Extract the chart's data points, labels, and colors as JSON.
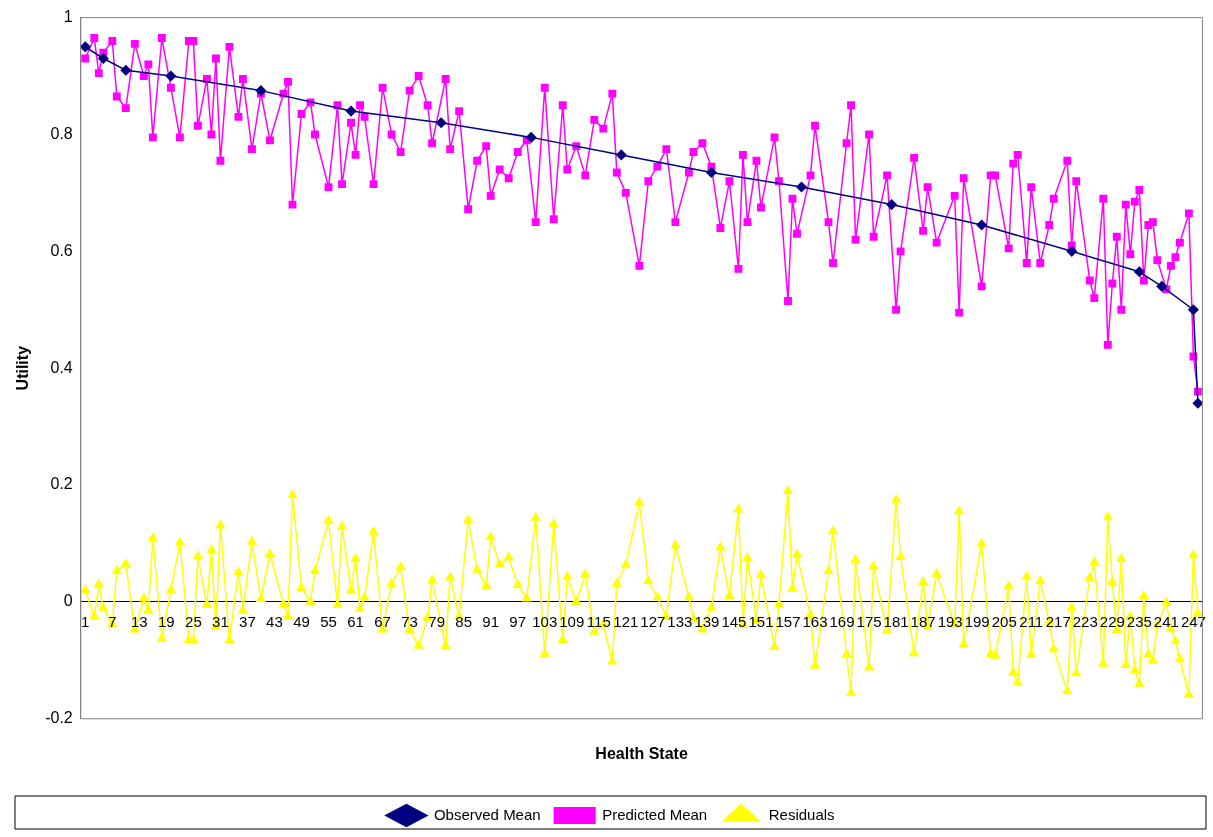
{
  "chart_data": {
    "type": "line",
    "xlabel": "Health State",
    "ylabel": "Utility",
    "legend": "bottom",
    "grid": false,
    "xlim": [
      0,
      249
    ],
    "xticks": [
      1,
      7,
      13,
      19,
      25,
      31,
      37,
      43,
      49,
      55,
      61,
      67,
      73,
      79,
      85,
      91,
      97,
      103,
      109,
      115,
      121,
      127,
      133,
      139,
      145,
      151,
      157,
      163,
      169,
      175,
      181,
      187,
      193,
      199,
      205,
      211,
      217,
      223,
      229,
      235,
      241,
      247
    ],
    "ylim": [
      -0.2,
      1
    ],
    "yticks": [
      -0.2,
      0,
      0.2,
      0.4,
      0.6,
      0.8,
      1
    ],
    "series": [
      {
        "name": "Observed Mean",
        "color": "#000080",
        "marker": "diamond",
        "x": [
          1,
          5,
          10,
          20,
          40,
          60,
          80,
          100,
          120,
          140,
          160,
          180,
          200,
          220,
          235,
          240,
          247,
          248
        ],
        "values": [
          0.95,
          0.93,
          0.91,
          0.9,
          0.875,
          0.84,
          0.82,
          0.795,
          0.765,
          0.735,
          0.71,
          0.68,
          0.645,
          0.6,
          0.565,
          0.54,
          0.5,
          0.34
        ]
      },
      {
        "name": "Predicted Mean",
        "color": "#ff00ff",
        "marker": "square",
        "x": [
          1,
          3,
          4,
          5,
          7,
          8,
          10,
          12,
          14,
          15,
          16,
          18,
          20,
          22,
          24,
          25,
          26,
          28,
          29,
          30,
          31,
          33,
          35,
          36,
          38,
          40,
          42,
          45,
          46,
          47,
          49,
          51,
          52,
          55,
          57,
          58,
          60,
          61,
          62,
          63,
          65,
          67,
          69,
          71,
          73,
          75,
          77,
          78,
          81,
          82,
          84,
          86,
          88,
          90,
          91,
          93,
          95,
          97,
          99,
          101,
          103,
          105,
          107,
          108,
          110,
          112,
          114,
          116,
          118,
          119,
          121,
          124,
          126,
          128,
          130,
          132,
          135,
          136,
          138,
          140,
          142,
          144,
          146,
          147,
          148,
          150,
          151,
          154,
          155,
          157,
          158,
          159,
          162,
          163,
          166,
          167,
          170,
          171,
          172,
          175,
          176,
          179,
          181,
          182,
          185,
          187,
          188,
          190,
          194,
          195,
          196,
          200,
          202,
          203,
          206,
          207,
          208,
          210,
          211,
          213,
          215,
          216,
          219,
          220,
          221,
          224,
          225,
          227,
          228,
          229,
          230,
          231,
          232,
          233,
          234,
          235,
          236,
          237,
          238,
          239,
          241,
          242,
          243,
          244,
          246,
          247,
          248
        ],
        "values": [
          0.93,
          0.965,
          0.905,
          0.94,
          0.96,
          0.865,
          0.845,
          0.955,
          0.9,
          0.92,
          0.795,
          0.965,
          0.88,
          0.795,
          0.96,
          0.96,
          0.815,
          0.895,
          0.8,
          0.93,
          0.755,
          0.95,
          0.83,
          0.895,
          0.775,
          0.87,
          0.79,
          0.87,
          0.89,
          0.68,
          0.835,
          0.855,
          0.8,
          0.71,
          0.85,
          0.715,
          0.82,
          0.765,
          0.85,
          0.83,
          0.715,
          0.88,
          0.8,
          0.77,
          0.875,
          0.9,
          0.85,
          0.785,
          0.895,
          0.775,
          0.84,
          0.672,
          0.755,
          0.78,
          0.695,
          0.74,
          0.725,
          0.77,
          0.79,
          0.65,
          0.88,
          0.655,
          0.85,
          0.74,
          0.78,
          0.73,
          0.825,
          0.81,
          0.87,
          0.735,
          0.7,
          0.575,
          0.72,
          0.745,
          0.775,
          0.65,
          0.735,
          0.77,
          0.785,
          0.745,
          0.64,
          0.72,
          0.57,
          0.765,
          0.65,
          0.755,
          0.675,
          0.795,
          0.72,
          0.515,
          0.69,
          0.63,
          0.73,
          0.815,
          0.65,
          0.58,
          0.785,
          0.85,
          0.62,
          0.8,
          0.625,
          0.73,
          0.5,
          0.6,
          0.76,
          0.635,
          0.71,
          0.615,
          0.695,
          0.495,
          0.725,
          0.54,
          0.73,
          0.73,
          0.605,
          0.75,
          0.765,
          0.58,
          0.71,
          0.58,
          0.645,
          0.69,
          0.755,
          0.61,
          0.72,
          0.55,
          0.52,
          0.69,
          0.44,
          0.545,
          0.625,
          0.5,
          0.68,
          0.595,
          0.685,
          0.705,
          0.55,
          0.645,
          0.65,
          0.585,
          0.535,
          0.575,
          0.59,
          0.615,
          0.665,
          0.42,
          0.36
        ]
      },
      {
        "name": "Residuals",
        "color": "#ffff00",
        "marker": "triangle",
        "x": [
          1,
          3,
          4,
          5,
          7,
          8,
          10,
          12,
          14,
          15,
          16,
          18,
          20,
          22,
          24,
          25,
          26,
          28,
          29,
          30,
          31,
          33,
          35,
          36,
          38,
          40,
          42,
          45,
          46,
          47,
          49,
          51,
          52,
          55,
          57,
          58,
          60,
          61,
          62,
          63,
          65,
          67,
          69,
          71,
          73,
          75,
          77,
          78,
          81,
          82,
          84,
          86,
          88,
          90,
          91,
          93,
          95,
          97,
          99,
          101,
          103,
          105,
          107,
          108,
          110,
          112,
          114,
          116,
          118,
          119,
          121,
          124,
          126,
          128,
          130,
          132,
          135,
          136,
          138,
          140,
          142,
          144,
          146,
          147,
          148,
          150,
          151,
          154,
          155,
          157,
          158,
          159,
          162,
          163,
          166,
          167,
          170,
          171,
          172,
          175,
          176,
          179,
          181,
          182,
          185,
          187,
          188,
          190,
          194,
          195,
          196,
          200,
          202,
          203,
          206,
          207,
          208,
          210,
          211,
          213,
          215,
          216,
          219,
          220,
          221,
          224,
          225,
          227,
          228,
          229,
          230,
          231,
          232,
          233,
          234,
          235,
          236,
          237,
          238,
          239,
          241,
          242,
          243,
          244,
          246,
          247,
          248
        ],
        "values": [
          0.02,
          -0.025,
          0.03,
          -0.01,
          -0.038,
          0.053,
          0.065,
          -0.047,
          0.006,
          -0.015,
          0.109,
          -0.063,
          0.02,
          0.102,
          -0.065,
          -0.066,
          0.078,
          -0.005,
          0.089,
          -0.042,
          0.131,
          -0.066,
          0.051,
          -0.015,
          0.103,
          0.005,
          0.082,
          -0.004,
          -0.025,
          0.183,
          0.024,
          0,
          0.053,
          0.139,
          -0.005,
          0.129,
          0.02,
          0.074,
          -0.012,
          0.007,
          0.12,
          -0.047,
          0.031,
          0.059,
          -0.048,
          -0.075,
          -0.027,
          0.037,
          -0.076,
          0.042,
          -0.025,
          0.14,
          0.055,
          0.027,
          0.111,
          0.064,
          0.076,
          0.029,
          0.006,
          0.144,
          -0.089,
          0.133,
          -0.065,
          0.043,
          0,
          0.047,
          -0.051,
          -0.039,
          -0.102,
          0.031,
          0.064,
          0.17,
          0.036,
          0.008,
          -0.025,
          0.097,
          0.008,
          -0.029,
          -0.047,
          -0.01,
          0.093,
          0.01,
          0.158,
          -0.039,
          0.075,
          -0.032,
          0.046,
          -0.077,
          -0.004,
          0.19,
          0.023,
          0.081,
          -0.022,
          -0.109,
          0.053,
          0.121,
          -0.09,
          -0.156,
          0.072,
          -0.112,
          0.061,
          -0.049,
          0.175,
          0.077,
          -0.088,
          0.034,
          -0.043,
          0.048,
          -0.039,
          0.155,
          -0.073,
          0.1,
          -0.089,
          -0.092,
          0.027,
          -0.121,
          -0.138,
          0.043,
          -0.09,
          0.036,
          -0.034,
          -0.081,
          -0.153,
          -0.01,
          -0.122,
          0.041,
          0.068,
          -0.106,
          0.145,
          0.034,
          -0.048,
          0.074,
          -0.108,
          -0.025,
          -0.117,
          -0.14,
          0.01,
          -0.09,
          -0.1,
          -0.04,
          -0.001,
          -0.046,
          -0.067,
          -0.098,
          -0.159,
          0.08,
          -0.02
        ]
      }
    ]
  }
}
